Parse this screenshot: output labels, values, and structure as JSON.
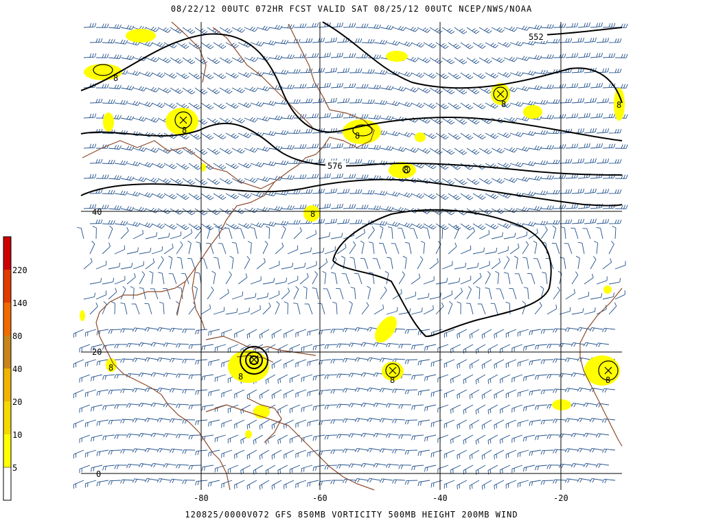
{
  "header": {
    "title": "08/22/12  00UTC   072HR  FCST VALID SAT 08/25/12 00UTC  NCEP/NWS/NOAA"
  },
  "footer": {
    "title": "120825/0000V072 GFS  850MB VORTICITY 500MB HEIGHT 200MB WIND"
  },
  "map": {
    "longitude_labels": [
      "-80",
      "-60",
      "-40",
      "-20"
    ],
    "latitude_labels": [
      "40",
      "20",
      "0"
    ],
    "height_contour_labels": [
      "552",
      "576"
    ],
    "vorticity_center_label": "8",
    "colors": {
      "coast": "#8b4a2b",
      "barbs": "#1f4f8a",
      "vort": "#ffff00",
      "contour": "#000000"
    }
  },
  "color_scale": {
    "labels": [
      "220",
      "140",
      "80",
      "40",
      "20",
      "10",
      "5"
    ],
    "colors": [
      "#cc0000",
      "#e23b00",
      "#f06a00",
      "#c8861a",
      "#f0b400",
      "#f4d800",
      "#ffff00",
      "#ffff30",
      "#ffffff"
    ]
  }
}
